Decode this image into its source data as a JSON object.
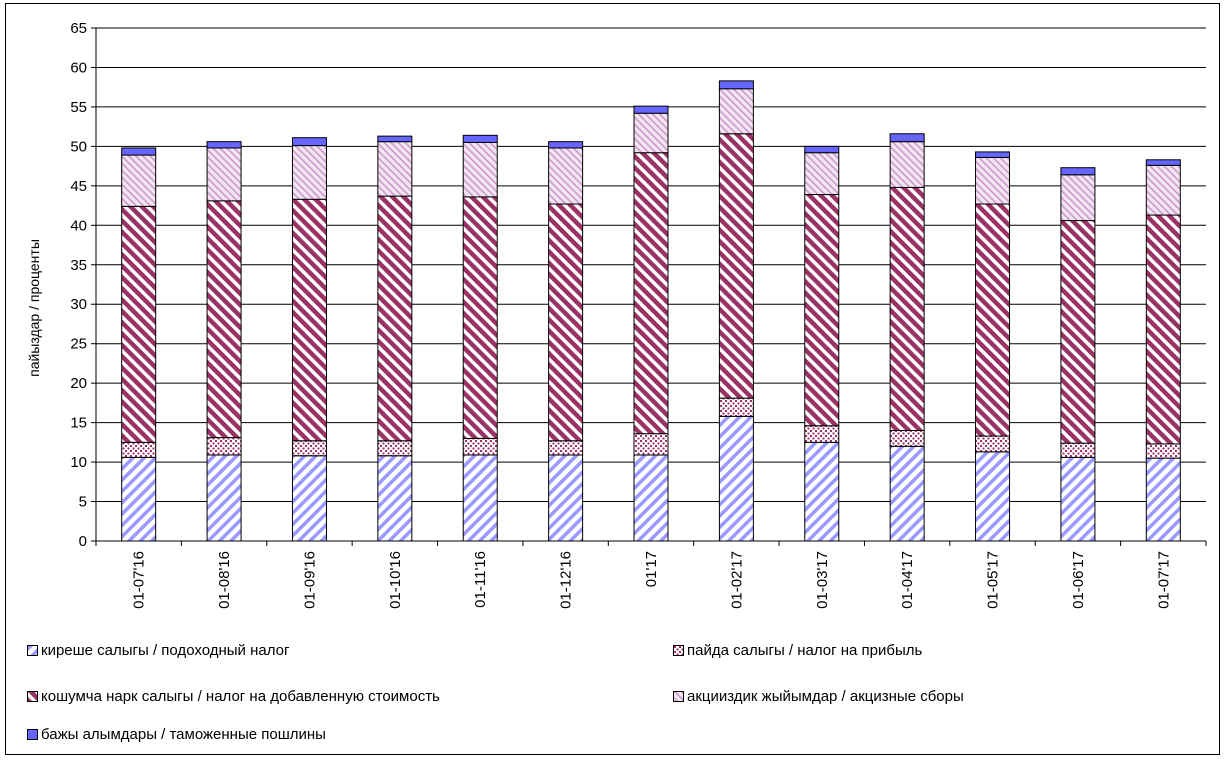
{
  "chart_data": {
    "type": "bar",
    "stacked": true,
    "title": "",
    "xlabel": "",
    "ylabel": "пайыздар / проценты",
    "ylim": [
      0,
      65
    ],
    "yticks": [
      0,
      5,
      10,
      15,
      20,
      25,
      30,
      35,
      40,
      45,
      50,
      55,
      60,
      65
    ],
    "grid": true,
    "legend_position": "bottom",
    "categories": [
      "01-07'16",
      "01-08'16",
      "01-09'16",
      "01-10'16",
      "01-11'16",
      "01-12'16",
      "01'17",
      "01-02'17",
      "01-03'17",
      "01-04'17",
      "01-05'17",
      "01-06'17",
      "01-07'17"
    ],
    "series": [
      {
        "name": "киреше салыгы / подоходный налог",
        "pattern": "diag-blue",
        "color": "#9999ff",
        "values": [
          10.6,
          10.9,
          10.8,
          10.8,
          10.9,
          10.9,
          10.9,
          15.8,
          12.5,
          12.0,
          11.3,
          10.6,
          10.5
        ]
      },
      {
        "name": "пайда салыгы / налог на прибыль",
        "pattern": "dots",
        "color": "#993366",
        "values": [
          1.9,
          2.2,
          1.9,
          1.9,
          2.1,
          1.8,
          2.7,
          2.3,
          2.1,
          2.0,
          2.0,
          1.8,
          1.8
        ]
      },
      {
        "name": "кошумча нарк салыгы / налог на добавленную стоимость",
        "pattern": "diag-maroon",
        "color": "#993366",
        "values": [
          29.9,
          30.0,
          30.6,
          31.0,
          30.6,
          30.0,
          35.6,
          33.5,
          29.3,
          30.8,
          29.4,
          28.2,
          29.0
        ]
      },
      {
        "name": "акцииздик жыйымдар / акцизные сборы",
        "pattern": "hatch-pink",
        "color": "#cc99cc",
        "values": [
          6.5,
          6.7,
          6.8,
          6.9,
          6.9,
          7.1,
          5.0,
          5.7,
          5.3,
          5.8,
          5.9,
          5.8,
          6.3
        ]
      },
      {
        "name": "бажы алымдары / таможенные пошлины",
        "pattern": "solid-blue",
        "color": "#6666ff",
        "values": [
          0.9,
          0.8,
          1.0,
          0.7,
          0.9,
          0.8,
          0.9,
          1.0,
          0.8,
          1.0,
          0.7,
          0.9,
          0.7
        ]
      }
    ]
  }
}
